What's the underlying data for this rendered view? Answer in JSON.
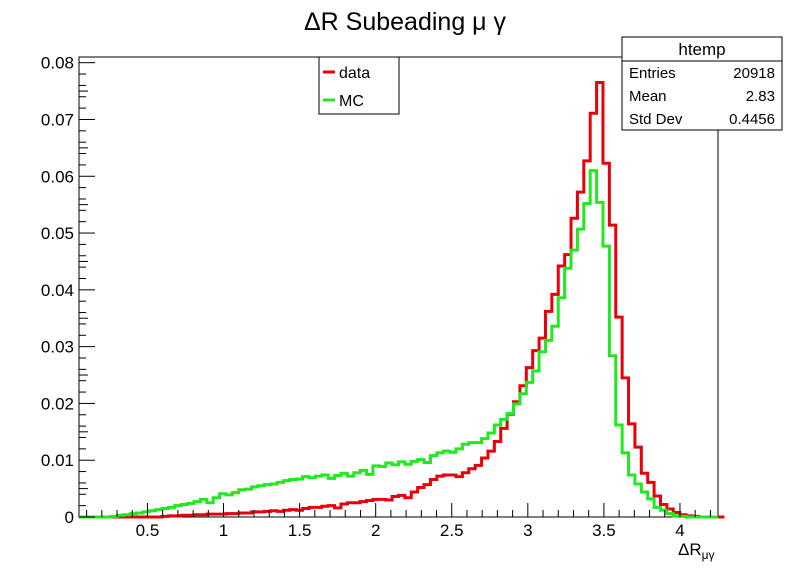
{
  "chart_data": {
    "type": "histogram",
    "title": "ΔR Subeading μ γ",
    "xlabel": "ΔR",
    "xlabel_sub": "μγ",
    "ylabel": "",
    "xlim": [
      0.05,
      4.25
    ],
    "ylim": [
      0,
      0.081
    ],
    "x_ticks": [
      0.5,
      1,
      1.5,
      2,
      2.5,
      3,
      3.5,
      4
    ],
    "x_tick_labels": [
      "0.5",
      "1",
      "1.5",
      "2",
      "2.5",
      "3",
      "3.5",
      "4"
    ],
    "y_ticks": [
      0,
      0.01,
      0.02,
      0.03,
      0.04,
      0.05,
      0.06,
      0.07,
      0.08
    ],
    "y_tick_labels": [
      "0",
      "0.01",
      "0.02",
      "0.03",
      "0.04",
      "0.05",
      "0.06",
      "0.07",
      "0.08"
    ],
    "grid": false,
    "legend_position": "top-center",
    "bin_edges_start": 0.05,
    "bin_width": 0.042,
    "series": [
      {
        "name": "data",
        "color": "#e8000b",
        "values": [
          0,
          0,
          0,
          0,
          0,
          0,
          0,
          0,
          0,
          0,
          0,
          0,
          0,
          0.0001,
          0.0002,
          0.0002,
          0.0003,
          0.0003,
          0.0004,
          0.0004,
          0.0005,
          0.0005,
          0.0005,
          0.0006,
          0.0006,
          0.0007,
          0.0007,
          0.0009,
          0.0009,
          0.001,
          0.0011,
          0.001,
          0.0012,
          0.0013,
          0.0012,
          0.0015,
          0.0017,
          0.0017,
          0.0019,
          0.002,
          0.0016,
          0.0023,
          0.0025,
          0.0025,
          0.0027,
          0.0029,
          0.0031,
          0.0031,
          0.003,
          0.0036,
          0.0038,
          0.0034,
          0.0044,
          0.0052,
          0.0057,
          0.0066,
          0.0072,
          0.0074,
          0.0074,
          0.0071,
          0.0078,
          0.0085,
          0.0091,
          0.0104,
          0.0116,
          0.0133,
          0.0156,
          0.0181,
          0.0203,
          0.0231,
          0.0263,
          0.0293,
          0.0315,
          0.0362,
          0.0392,
          0.0442,
          0.0462,
          0.0526,
          0.0572,
          0.0627,
          0.0711,
          0.0765,
          0.0623,
          0.0514,
          0.0352,
          0.0245,
          0.0164,
          0.0123,
          0.0077,
          0.0061,
          0.0037,
          0.0022,
          0.0014,
          0.0008,
          0.0004,
          0.0002,
          0.0001,
          0,
          0,
          0,
          0,
          0
        ]
      },
      {
        "name": "MC",
        "color": "#22e822",
        "values": [
          0,
          0,
          0,
          0,
          0,
          0.0001,
          0.0003,
          0.0004,
          0.0006,
          0.0007,
          0.0009,
          0.0011,
          0.0013,
          0.0015,
          0.0017,
          0.002,
          0.0022,
          0.0024,
          0.0027,
          0.0031,
          0.0025,
          0.0034,
          0.0041,
          0.0039,
          0.0043,
          0.0048,
          0.0049,
          0.0053,
          0.0055,
          0.0057,
          0.0058,
          0.0061,
          0.0064,
          0.0066,
          0.0067,
          0.0071,
          0.0069,
          0.0072,
          0.0074,
          0.0068,
          0.0073,
          0.0077,
          0.0072,
          0.0078,
          0.0082,
          0.0075,
          0.009,
          0.0089,
          0.0095,
          0.0092,
          0.0097,
          0.0093,
          0.0098,
          0.0101,
          0.0096,
          0.0108,
          0.0113,
          0.0116,
          0.0114,
          0.012,
          0.0128,
          0.0131,
          0.0131,
          0.0138,
          0.0148,
          0.0162,
          0.0172,
          0.0182,
          0.0199,
          0.0217,
          0.0237,
          0.0257,
          0.0291,
          0.0311,
          0.0336,
          0.0386,
          0.0438,
          0.047,
          0.0507,
          0.0552,
          0.061,
          0.0554,
          0.0477,
          0.0284,
          0.0162,
          0.0113,
          0.0074,
          0.0058,
          0.0044,
          0.0032,
          0.0017,
          0.0012,
          0.0006,
          0.0002,
          0.0001,
          0,
          0,
          0,
          0,
          0
        ]
      }
    ]
  },
  "stats_box": {
    "title": "htemp",
    "rows": [
      {
        "label": "Entries",
        "value": "20918"
      },
      {
        "label": "Mean",
        "value": "2.83"
      },
      {
        "label": "Std Dev",
        "value": "0.4456"
      }
    ]
  }
}
